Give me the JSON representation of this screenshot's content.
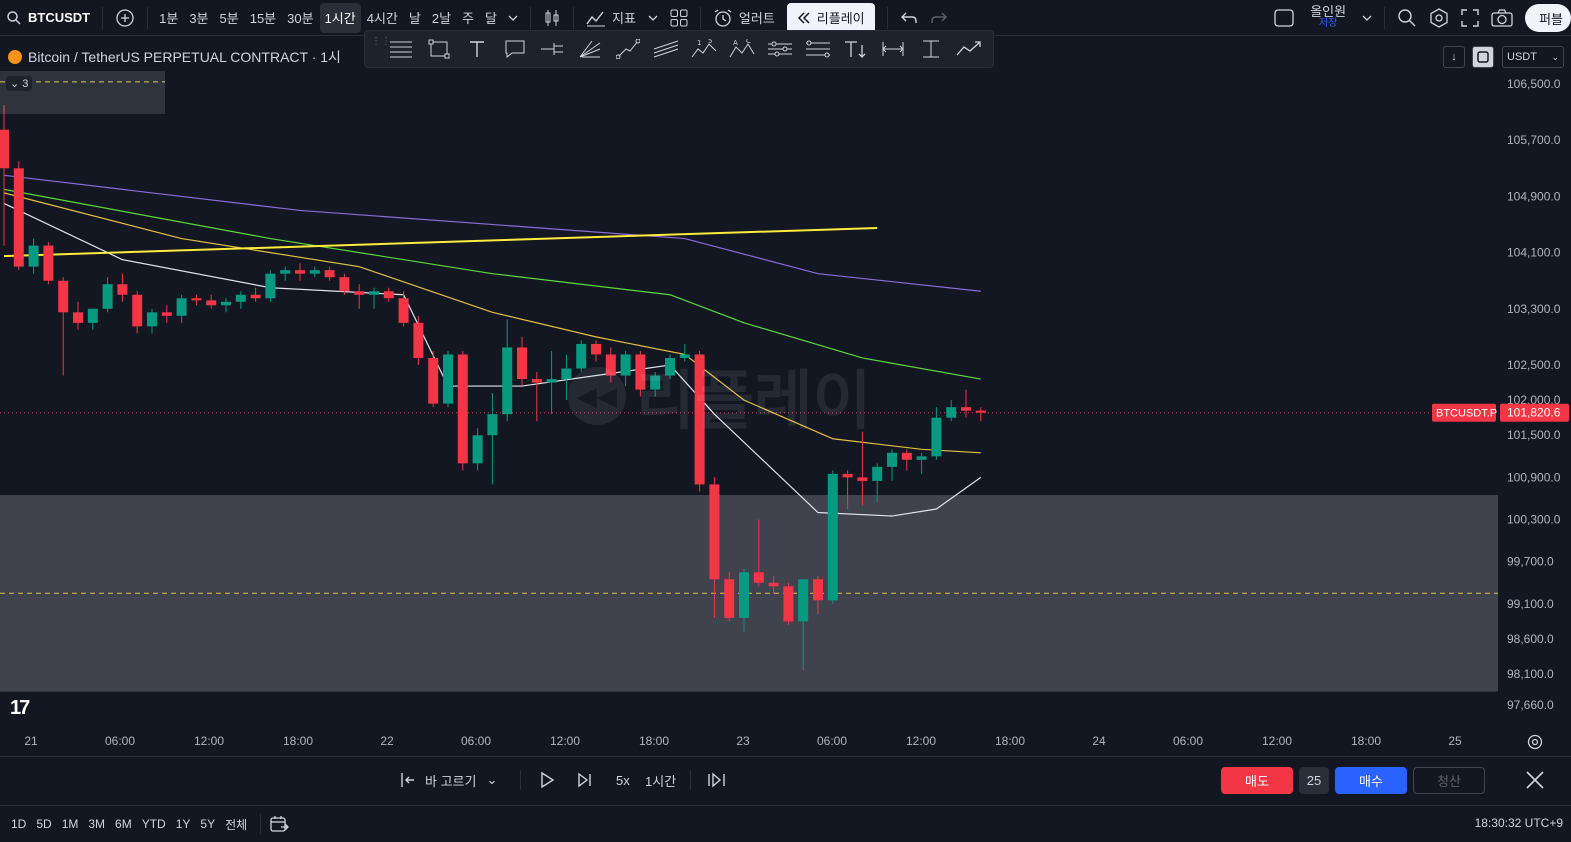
{
  "topbar": {
    "symbol": "BTCUSDT",
    "intervals": [
      "1분",
      "3분",
      "5분",
      "15분",
      "30분",
      "1시간",
      "4시간",
      "날",
      "2날",
      "주",
      "달"
    ],
    "active_interval": "1시간",
    "indicators_label": "지표",
    "alert_label": "얼러트",
    "replay_label": "리플레이",
    "save_name": "올인원",
    "save_status": "저장",
    "publish_label": "퍼블"
  },
  "legend": {
    "title": "Bitcoin / TetherUS PERPETUAL CONTRACT · 1시",
    "indicator_count": "3"
  },
  "currency": "USDT",
  "price_labels": [
    "106,500.0",
    "105,700.0",
    "104,900.0",
    "104,100.0",
    "103,300.0",
    "102,500.0",
    "102,000.0",
    "101,500.0",
    "100,900.0",
    "100,300.0",
    "99,700.0",
    "99,100.0",
    "98,600.0",
    "98,100.0",
    "97,660.0"
  ],
  "current_price": {
    "symbol_tag": "BTCUSDT.P",
    "value": "101,820.6"
  },
  "time_labels": [
    "21",
    "06:00",
    "12:00",
    "18:00",
    "22",
    "06:00",
    "12:00",
    "18:00",
    "23",
    "06:00",
    "12:00",
    "18:00",
    "24",
    "06:00",
    "12:00",
    "18:00",
    "25"
  ],
  "watermark": "리플레이",
  "replay": {
    "select_bar": "바 고르기",
    "speed": "5x",
    "interval": "1시간",
    "sell": "매도",
    "qty": "25",
    "buy": "매수",
    "flatten": "청산"
  },
  "ranges": [
    "1D",
    "5D",
    "1M",
    "3M",
    "6M",
    "YTD",
    "1Y",
    "5Y",
    "전체"
  ],
  "clock": "18:30:32 UTC+9",
  "colors": {
    "up": "#089981",
    "down": "#f23645",
    "accent": "#2962ff",
    "bg": "#131722"
  },
  "chart_data": {
    "type": "candlestick",
    "title": "Bitcoin / TetherUS PERPETUAL CONTRACT · 1시",
    "y_scale": [
      [
        106500,
        84
      ],
      [
        97660,
        705
      ]
    ],
    "ylim": [
      97660,
      106500
    ],
    "candle_spacing": 14.8,
    "first_candle_x": 4,
    "candles": [
      {
        "o": 105850,
        "h": 106200,
        "l": 104200,
        "c": 105300
      },
      {
        "o": 105300,
        "h": 105400,
        "l": 103850,
        "c": 103900
      },
      {
        "o": 103900,
        "h": 104300,
        "l": 103800,
        "c": 104200
      },
      {
        "o": 104200,
        "h": 104250,
        "l": 103650,
        "c": 103700
      },
      {
        "o": 103700,
        "h": 103750,
        "l": 102350,
        "c": 103250
      },
      {
        "o": 103250,
        "h": 103400,
        "l": 103000,
        "c": 103100
      },
      {
        "o": 103100,
        "h": 103300,
        "l": 103000,
        "c": 103300
      },
      {
        "o": 103300,
        "h": 103750,
        "l": 103250,
        "c": 103650
      },
      {
        "o": 103650,
        "h": 103800,
        "l": 103400,
        "c": 103500
      },
      {
        "o": 103500,
        "h": 103550,
        "l": 102950,
        "c": 103050
      },
      {
        "o": 103050,
        "h": 103300,
        "l": 102950,
        "c": 103250
      },
      {
        "o": 103250,
        "h": 103350,
        "l": 103100,
        "c": 103200
      },
      {
        "o": 103200,
        "h": 103500,
        "l": 103100,
        "c": 103450
      },
      {
        "o": 103450,
        "h": 103500,
        "l": 103350,
        "c": 103420
      },
      {
        "o": 103420,
        "h": 103500,
        "l": 103300,
        "c": 103350
      },
      {
        "o": 103350,
        "h": 103450,
        "l": 103250,
        "c": 103400
      },
      {
        "o": 103400,
        "h": 103550,
        "l": 103300,
        "c": 103500
      },
      {
        "o": 103500,
        "h": 103600,
        "l": 103400,
        "c": 103450
      },
      {
        "o": 103450,
        "h": 103850,
        "l": 103400,
        "c": 103800
      },
      {
        "o": 103800,
        "h": 103900,
        "l": 103700,
        "c": 103850
      },
      {
        "o": 103850,
        "h": 103950,
        "l": 103700,
        "c": 103800
      },
      {
        "o": 103800,
        "h": 103900,
        "l": 103750,
        "c": 103850
      },
      {
        "o": 103850,
        "h": 103900,
        "l": 103700,
        "c": 103750
      },
      {
        "o": 103750,
        "h": 103800,
        "l": 103500,
        "c": 103550
      },
      {
        "o": 103550,
        "h": 103650,
        "l": 103300,
        "c": 103500
      },
      {
        "o": 103500,
        "h": 103600,
        "l": 103300,
        "c": 103550
      },
      {
        "o": 103550,
        "h": 103600,
        "l": 103400,
        "c": 103450
      },
      {
        "o": 103450,
        "h": 103550,
        "l": 103050,
        "c": 103100
      },
      {
        "o": 103100,
        "h": 103200,
        "l": 102500,
        "c": 102600
      },
      {
        "o": 102600,
        "h": 102700,
        "l": 101900,
        "c": 101950
      },
      {
        "o": 101950,
        "h": 102700,
        "l": 101900,
        "c": 102650
      },
      {
        "o": 102650,
        "h": 102700,
        "l": 101000,
        "c": 101100
      },
      {
        "o": 101100,
        "h": 101600,
        "l": 101000,
        "c": 101500
      },
      {
        "o": 101500,
        "h": 102100,
        "l": 100800,
        "c": 101800
      },
      {
        "o": 101800,
        "h": 103150,
        "l": 101700,
        "c": 102750
      },
      {
        "o": 102750,
        "h": 102900,
        "l": 102200,
        "c": 102300
      },
      {
        "o": 102300,
        "h": 102400,
        "l": 101700,
        "c": 102250
      },
      {
        "o": 102250,
        "h": 102700,
        "l": 101800,
        "c": 102300
      },
      {
        "o": 102300,
        "h": 102650,
        "l": 102000,
        "c": 102450
      },
      {
        "o": 102450,
        "h": 102850,
        "l": 102400,
        "c": 102800
      },
      {
        "o": 102800,
        "h": 102850,
        "l": 102550,
        "c": 102650
      },
      {
        "o": 102650,
        "h": 102750,
        "l": 102250,
        "c": 102350
      },
      {
        "o": 102350,
        "h": 102700,
        "l": 102200,
        "c": 102650
      },
      {
        "o": 102650,
        "h": 102700,
        "l": 102050,
        "c": 102150
      },
      {
        "o": 102150,
        "h": 102400,
        "l": 102050,
        "c": 102350
      },
      {
        "o": 102350,
        "h": 102650,
        "l": 102300,
        "c": 102600
      },
      {
        "o": 102600,
        "h": 102800,
        "l": 102550,
        "c": 102650
      },
      {
        "o": 102650,
        "h": 102700,
        "l": 100700,
        "c": 100800
      },
      {
        "o": 100800,
        "h": 100900,
        "l": 98900,
        "c": 99450
      },
      {
        "o": 99450,
        "h": 99550,
        "l": 98850,
        "c": 98900
      },
      {
        "o": 98900,
        "h": 99600,
        "l": 98700,
        "c": 99550
      },
      {
        "o": 99550,
        "h": 100300,
        "l": 99350,
        "c": 99400
      },
      {
        "o": 99400,
        "h": 99500,
        "l": 99250,
        "c": 99350
      },
      {
        "o": 99350,
        "h": 99400,
        "l": 98800,
        "c": 98850
      },
      {
        "o": 98850,
        "h": 99450,
        "l": 98150,
        "c": 99450
      },
      {
        "o": 99450,
        "h": 99500,
        "l": 98950,
        "c": 99150
      },
      {
        "o": 99150,
        "h": 101000,
        "l": 99100,
        "c": 100950
      },
      {
        "o": 100950,
        "h": 101000,
        "l": 100450,
        "c": 100900
      },
      {
        "o": 100900,
        "h": 101550,
        "l": 100500,
        "c": 100850
      },
      {
        "o": 100850,
        "h": 101100,
        "l": 100550,
        "c": 101050
      },
      {
        "o": 101050,
        "h": 101300,
        "l": 100850,
        "c": 101250
      },
      {
        "o": 101250,
        "h": 101300,
        "l": 101000,
        "c": 101150
      },
      {
        "o": 101150,
        "h": 101250,
        "l": 100950,
        "c": 101200
      },
      {
        "o": 101200,
        "h": 101900,
        "l": 101150,
        "c": 101750
      },
      {
        "o": 101750,
        "h": 102000,
        "l": 101700,
        "c": 101900
      },
      {
        "o": 101900,
        "h": 102150,
        "l": 101750,
        "c": 101850
      },
      {
        "o": 101850,
        "h": 101900,
        "l": 101700,
        "c": 101820.6
      }
    ],
    "lines": [
      {
        "name": "ma-white",
        "color": "#e0e3eb",
        "points": [
          [
            0,
            104800
          ],
          [
            8,
            104000
          ],
          [
            18,
            103600
          ],
          [
            27,
            103500
          ],
          [
            30,
            102200
          ],
          [
            35,
            102200
          ],
          [
            45,
            102500
          ],
          [
            48,
            101800
          ],
          [
            55,
            100400
          ],
          [
            60,
            100350
          ],
          [
            63,
            100450
          ],
          [
            66,
            100900
          ]
        ]
      },
      {
        "name": "ma-yellow",
        "color": "#e2c044",
        "points": [
          [
            0,
            104950
          ],
          [
            12,
            104300
          ],
          [
            24,
            103900
          ],
          [
            33,
            103250
          ],
          [
            40,
            102900
          ],
          [
            46,
            102650
          ],
          [
            50,
            102000
          ],
          [
            56,
            101450
          ],
          [
            62,
            101300
          ],
          [
            66,
            101250
          ]
        ]
      },
      {
        "name": "ma-green",
        "color": "#5fd83f",
        "points": [
          [
            0,
            105000
          ],
          [
            18,
            104300
          ],
          [
            33,
            103800
          ],
          [
            45,
            103500
          ],
          [
            50,
            103100
          ],
          [
            58,
            102600
          ],
          [
            66,
            102300
          ]
        ]
      },
      {
        "name": "ma-purple",
        "color": "#8c6ad8",
        "points": [
          [
            0,
            105200
          ],
          [
            20,
            104700
          ],
          [
            46,
            104300
          ],
          [
            55,
            103800
          ],
          [
            66,
            103550
          ]
        ]
      },
      {
        "name": "trendline",
        "color": "#ffeb3b",
        "points": [
          [
            0,
            104050
          ],
          [
            59,
            104450
          ]
        ]
      }
    ],
    "zones": [
      {
        "name": "dashed-top",
        "y_from": 106700,
        "y_to": 106130,
        "dash_y": 106530
      },
      {
        "name": "demand-zone",
        "y_from": 100650,
        "y_to": 97850,
        "dash_y": 99250
      }
    ]
  }
}
